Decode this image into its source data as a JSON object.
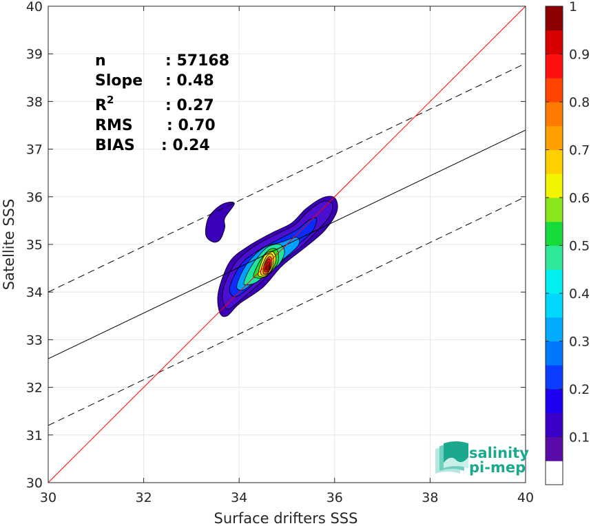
{
  "chart_data": {
    "type": "contour",
    "xlabel": "Surface drifters SSS",
    "ylabel": "Satellite SSS",
    "xlim": [
      30,
      40
    ],
    "ylim": [
      30,
      40
    ],
    "x_ticks": [
      "30",
      "32",
      "34",
      "36",
      "38",
      "40"
    ],
    "y_ticks": [
      "30",
      "31",
      "32",
      "33",
      "34",
      "35",
      "36",
      "37",
      "38",
      "39",
      "40"
    ],
    "grid": true,
    "stats": [
      {
        "label": "n",
        "value": ": 57168"
      },
      {
        "label": "Slope",
        "value": ": 0.48"
      },
      {
        "label": "R",
        "sup": "2",
        "value": ": 0.27"
      },
      {
        "label": "RMS",
        "value": ": 0.70"
      },
      {
        "label": "BIAS",
        "value": ": 0.24"
      }
    ],
    "identity_line": {
      "color": "#ff0000",
      "points": [
        [
          30,
          30
        ],
        [
          40,
          40
        ]
      ]
    },
    "fit_line": {
      "color": "#000000",
      "points": [
        [
          30,
          32.6
        ],
        [
          40,
          37.4
        ]
      ]
    },
    "fit_band_upper": {
      "color": "#000000",
      "dashed": true,
      "points": [
        [
          30,
          34.0
        ],
        [
          40,
          38.8
        ]
      ]
    },
    "fit_band_lower": {
      "color": "#000000",
      "dashed": true,
      "points": [
        [
          30,
          31.2
        ],
        [
          40,
          36.0
        ]
      ]
    },
    "density_peak": {
      "x": 34.6,
      "y": 34.55,
      "value": 1.0
    },
    "contours": [
      {
        "level": 0.05,
        "color": "#3a00b8",
        "blobs": [
          [
            [
              33.35,
              35.55
            ],
            [
              33.55,
              35.78
            ],
            [
              33.75,
              35.88
            ],
            [
              33.9,
              35.85
            ],
            [
              33.7,
              35.55
            ],
            [
              33.7,
              35.35
            ],
            [
              33.6,
              35.1
            ],
            [
              33.45,
              35.05
            ],
            [
              33.3,
              35.2
            ]
          ],
          [
            [
              33.55,
              33.9
            ],
            [
              33.65,
              34.3
            ],
            [
              33.85,
              34.7
            ],
            [
              34.25,
              35.0
            ],
            [
              34.7,
              35.25
            ],
            [
              35.1,
              35.45
            ],
            [
              35.4,
              35.75
            ],
            [
              35.75,
              35.98
            ],
            [
              36.0,
              35.98
            ],
            [
              36.05,
              35.7
            ],
            [
              35.8,
              35.3
            ],
            [
              35.4,
              34.95
            ],
            [
              34.9,
              34.55
            ],
            [
              34.5,
              34.1
            ],
            [
              34.0,
              33.75
            ],
            [
              33.75,
              33.5
            ],
            [
              33.6,
              33.55
            ]
          ]
        ]
      },
      {
        "level": 0.1,
        "color": "#4a0fd0",
        "blobs": [
          [
            [
              33.65,
              33.95
            ],
            [
              33.75,
              34.3
            ],
            [
              33.95,
              34.65
            ],
            [
              34.3,
              34.95
            ],
            [
              34.75,
              35.2
            ],
            [
              35.15,
              35.4
            ],
            [
              35.45,
              35.7
            ],
            [
              35.75,
              35.9
            ],
            [
              35.95,
              35.85
            ],
            [
              35.9,
              35.6
            ],
            [
              35.65,
              35.3
            ],
            [
              35.3,
              34.95
            ],
            [
              34.85,
              34.6
            ],
            [
              34.45,
              34.2
            ],
            [
              34.05,
              33.85
            ],
            [
              33.8,
              33.65
            ],
            [
              33.7,
              33.7
            ]
          ]
        ]
      },
      {
        "level": 0.2,
        "color": "#0a2cff",
        "blobs": [
          [
            [
              33.8,
              34.05
            ],
            [
              33.9,
              34.35
            ],
            [
              34.1,
              34.65
            ],
            [
              34.45,
              34.9
            ],
            [
              34.85,
              35.12
            ],
            [
              35.2,
              35.3
            ],
            [
              35.45,
              35.5
            ],
            [
              35.62,
              35.55
            ],
            [
              35.55,
              35.3
            ],
            [
              35.3,
              35.05
            ],
            [
              34.9,
              34.75
            ],
            [
              34.5,
              34.35
            ],
            [
              34.1,
              34.0
            ],
            [
              33.9,
              33.9
            ]
          ]
        ]
      },
      {
        "level": 0.3,
        "color": "#00a2ff",
        "blobs": [
          [
            [
              33.95,
              34.1
            ],
            [
              34.05,
              34.4
            ],
            [
              34.25,
              34.7
            ],
            [
              34.55,
              34.95
            ],
            [
              34.9,
              35.05
            ],
            [
              35.2,
              35.15
            ],
            [
              35.25,
              35.0
            ],
            [
              35.0,
              34.75
            ],
            [
              34.65,
              34.5
            ],
            [
              34.35,
              34.25
            ],
            [
              34.1,
              34.05
            ]
          ]
        ]
      },
      {
        "level": 0.4,
        "color": "#1ee6a0",
        "blobs": [
          [
            [
              34.1,
              34.2
            ],
            [
              34.2,
              34.45
            ],
            [
              34.38,
              34.72
            ],
            [
              34.6,
              34.95
            ],
            [
              34.85,
              35.0
            ],
            [
              34.95,
              34.85
            ],
            [
              34.85,
              34.6
            ],
            [
              34.6,
              34.4
            ],
            [
              34.35,
              34.2
            ],
            [
              34.15,
              34.15
            ]
          ]
        ]
      },
      {
        "level": 0.5,
        "color": "#2ed82a",
        "blobs": [
          [
            [
              34.3,
              34.35
            ],
            [
              34.38,
              34.55
            ],
            [
              34.5,
              34.75
            ],
            [
              34.65,
              34.9
            ],
            [
              34.8,
              34.88
            ],
            [
              34.82,
              34.65
            ],
            [
              34.7,
              34.45
            ],
            [
              34.5,
              34.3
            ],
            [
              34.35,
              34.3
            ]
          ]
        ]
      },
      {
        "level": 0.6,
        "color": "#f2f20a",
        "blobs": [
          [
            [
              34.4,
              34.38
            ],
            [
              34.45,
              34.58
            ],
            [
              34.55,
              34.8
            ],
            [
              34.7,
              34.85
            ],
            [
              34.77,
              34.7
            ],
            [
              34.7,
              34.48
            ],
            [
              34.55,
              34.33
            ],
            [
              34.43,
              34.33
            ]
          ]
        ]
      },
      {
        "level": 0.7,
        "color": "#ffc400",
        "blobs": [
          [
            [
              34.45,
              34.4
            ],
            [
              34.5,
              34.6
            ],
            [
              34.6,
              34.78
            ],
            [
              34.7,
              34.78
            ],
            [
              34.72,
              34.6
            ],
            [
              34.65,
              34.42
            ],
            [
              34.52,
              34.35
            ]
          ]
        ]
      },
      {
        "level": 0.8,
        "color": "#ff6a00",
        "blobs": [
          [
            [
              34.5,
              34.42
            ],
            [
              34.53,
              34.6
            ],
            [
              34.62,
              34.74
            ],
            [
              34.68,
              34.7
            ],
            [
              34.68,
              34.55
            ],
            [
              34.6,
              34.4
            ],
            [
              34.53,
              34.38
            ]
          ]
        ]
      },
      {
        "level": 0.9,
        "color": "#f01010",
        "blobs": [
          [
            [
              34.53,
              34.45
            ],
            [
              34.56,
              34.62
            ],
            [
              34.63,
              34.7
            ],
            [
              34.66,
              34.6
            ],
            [
              34.63,
              34.45
            ],
            [
              34.57,
              34.42
            ]
          ]
        ]
      },
      {
        "level": 1.0,
        "color": "#aa0000",
        "blobs": [
          [
            [
              34.56,
              34.48
            ],
            [
              34.58,
              34.6
            ],
            [
              34.63,
              34.63
            ],
            [
              34.64,
              34.52
            ],
            [
              34.6,
              34.46
            ]
          ]
        ]
      }
    ],
    "colorbar": {
      "ticks": [
        "0.1",
        "0.2",
        "0.3",
        "0.4",
        "0.5",
        "0.6",
        "0.7",
        "0.8",
        "0.9",
        "1"
      ],
      "lim": [
        0,
        1
      ],
      "levels": [
        {
          "from": 0.0,
          "to": 0.05,
          "color": "#ffffff"
        },
        {
          "from": 0.05,
          "to": 0.1,
          "color": "#5a0aa8"
        },
        {
          "from": 0.1,
          "to": 0.15,
          "color": "#3a00c8"
        },
        {
          "from": 0.15,
          "to": 0.2,
          "color": "#1f00ee"
        },
        {
          "from": 0.2,
          "to": 0.25,
          "color": "#0a3dff"
        },
        {
          "from": 0.25,
          "to": 0.3,
          "color": "#0077ff"
        },
        {
          "from": 0.3,
          "to": 0.35,
          "color": "#00aaff"
        },
        {
          "from": 0.35,
          "to": 0.4,
          "color": "#00d8ff"
        },
        {
          "from": 0.4,
          "to": 0.45,
          "color": "#00f0f0"
        },
        {
          "from": 0.45,
          "to": 0.5,
          "color": "#2ee89a"
        },
        {
          "from": 0.5,
          "to": 0.55,
          "color": "#17db3a"
        },
        {
          "from": 0.55,
          "to": 0.6,
          "color": "#8ae51a"
        },
        {
          "from": 0.6,
          "to": 0.65,
          "color": "#f4f400"
        },
        {
          "from": 0.65,
          "to": 0.7,
          "color": "#ffd000"
        },
        {
          "from": 0.7,
          "to": 0.75,
          "color": "#ffa000"
        },
        {
          "from": 0.75,
          "to": 0.8,
          "color": "#ff7a00"
        },
        {
          "from": 0.8,
          "to": 0.85,
          "color": "#ff4400"
        },
        {
          "from": 0.85,
          "to": 0.9,
          "color": "#ff1010"
        },
        {
          "from": 0.9,
          "to": 0.95,
          "color": "#d80000"
        },
        {
          "from": 0.95,
          "to": 1.0,
          "color": "#8c0000"
        }
      ]
    }
  },
  "logo": {
    "line1": "salinity",
    "line2": "pi-mep",
    "colors": [
      "#1aa88e",
      "#6fd0c0",
      "#b7e8df"
    ]
  }
}
